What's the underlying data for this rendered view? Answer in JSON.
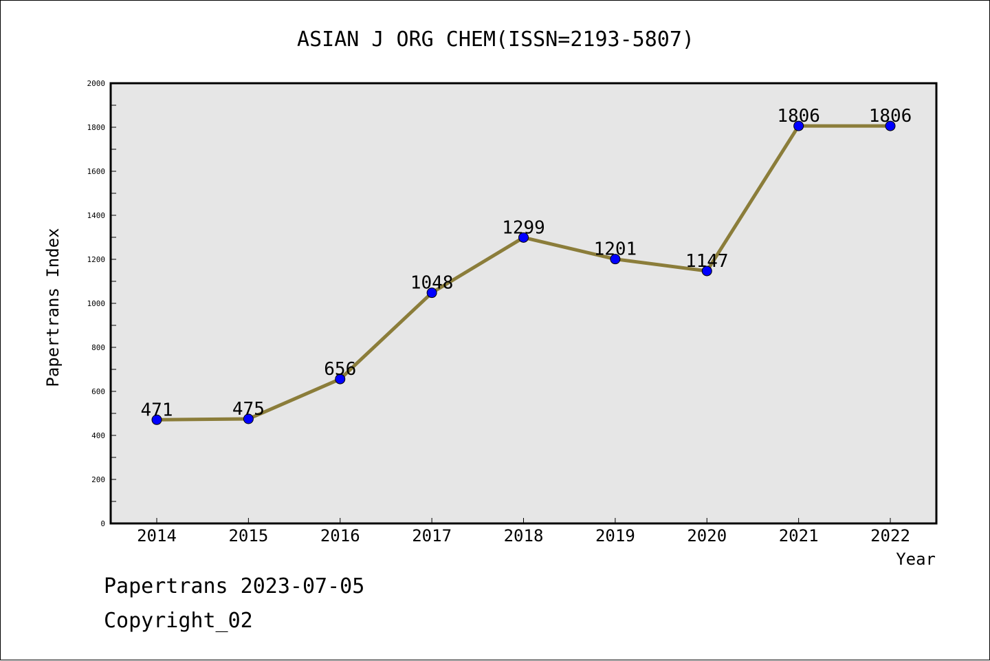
{
  "chart_data": {
    "type": "line",
    "title": "ASIAN J ORG CHEM(ISSN=2193-5807)",
    "xlabel": "Year",
    "ylabel": "Papertrans Index",
    "categories": [
      "2014",
      "2015",
      "2016",
      "2017",
      "2018",
      "2019",
      "2020",
      "2021",
      "2022"
    ],
    "values": [
      471,
      475,
      656,
      1048,
      1299,
      1201,
      1147,
      1806,
      1806
    ],
    "ylim": [
      0,
      2000
    ],
    "yticks": [
      0,
      200,
      400,
      600,
      800,
      1000,
      1200,
      1400,
      1600,
      1800,
      2000
    ],
    "grid": false,
    "line_color": "#8b7d3a",
    "marker_color": "#0000ff",
    "plot_background": "#e6e6e6"
  },
  "footer": {
    "date_line": "Papertrans 2023-07-05",
    "copyright_line": "Copyright_02"
  }
}
